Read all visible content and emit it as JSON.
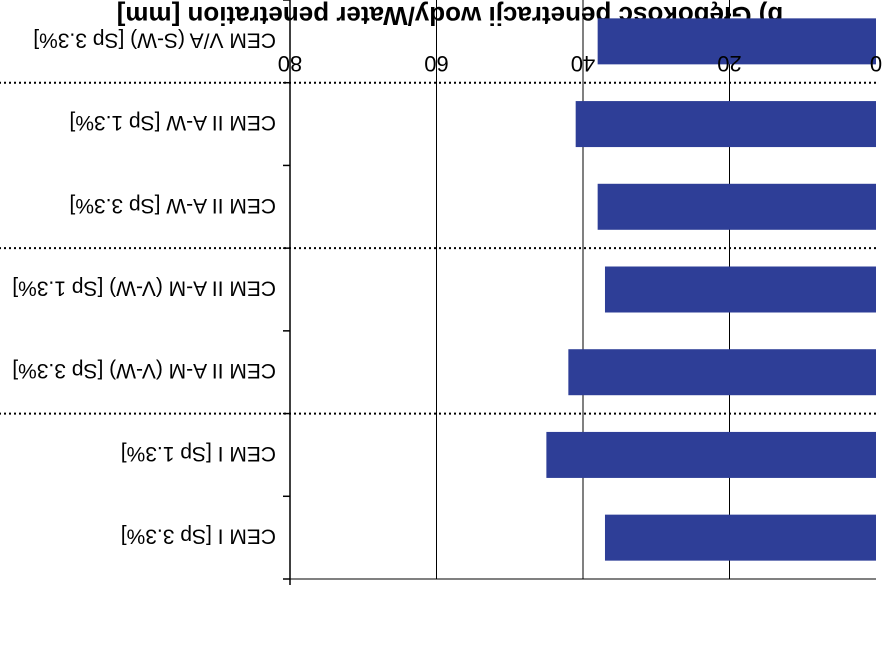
{
  "chart_data": {
    "type": "bar",
    "orientation": "horizontal",
    "title": "b)  Głębokość penetracji wody/Water penetration [mm]",
    "xlabel": "",
    "ylabel": "",
    "xlim": [
      0,
      80
    ],
    "ticks": [
      "0",
      "20",
      "40",
      "60",
      "80"
    ],
    "tick_values": [
      0,
      20,
      40,
      60,
      80
    ],
    "categories": [
      "CEM I [Sp 3.3%]",
      "CEM I [Sp 1.3%]",
      "CEM II A-M (V-W) [Sp 3.3%]",
      "CEM II A-M (V-W) [Sp 1.3%]",
      "CEM II A-W [Sp 3.3%]",
      "CEM II A-W [Sp 1.3%]",
      "CEM V/A (S-W) [Sp 3.3%]"
    ],
    "values": [
      37,
      45,
      42,
      37,
      38,
      41,
      38
    ],
    "group_separators_after": [
      1,
      3,
      5
    ],
    "bar_color": "#2E3E97",
    "grid": true,
    "legend": "none",
    "mirrored": true
  }
}
